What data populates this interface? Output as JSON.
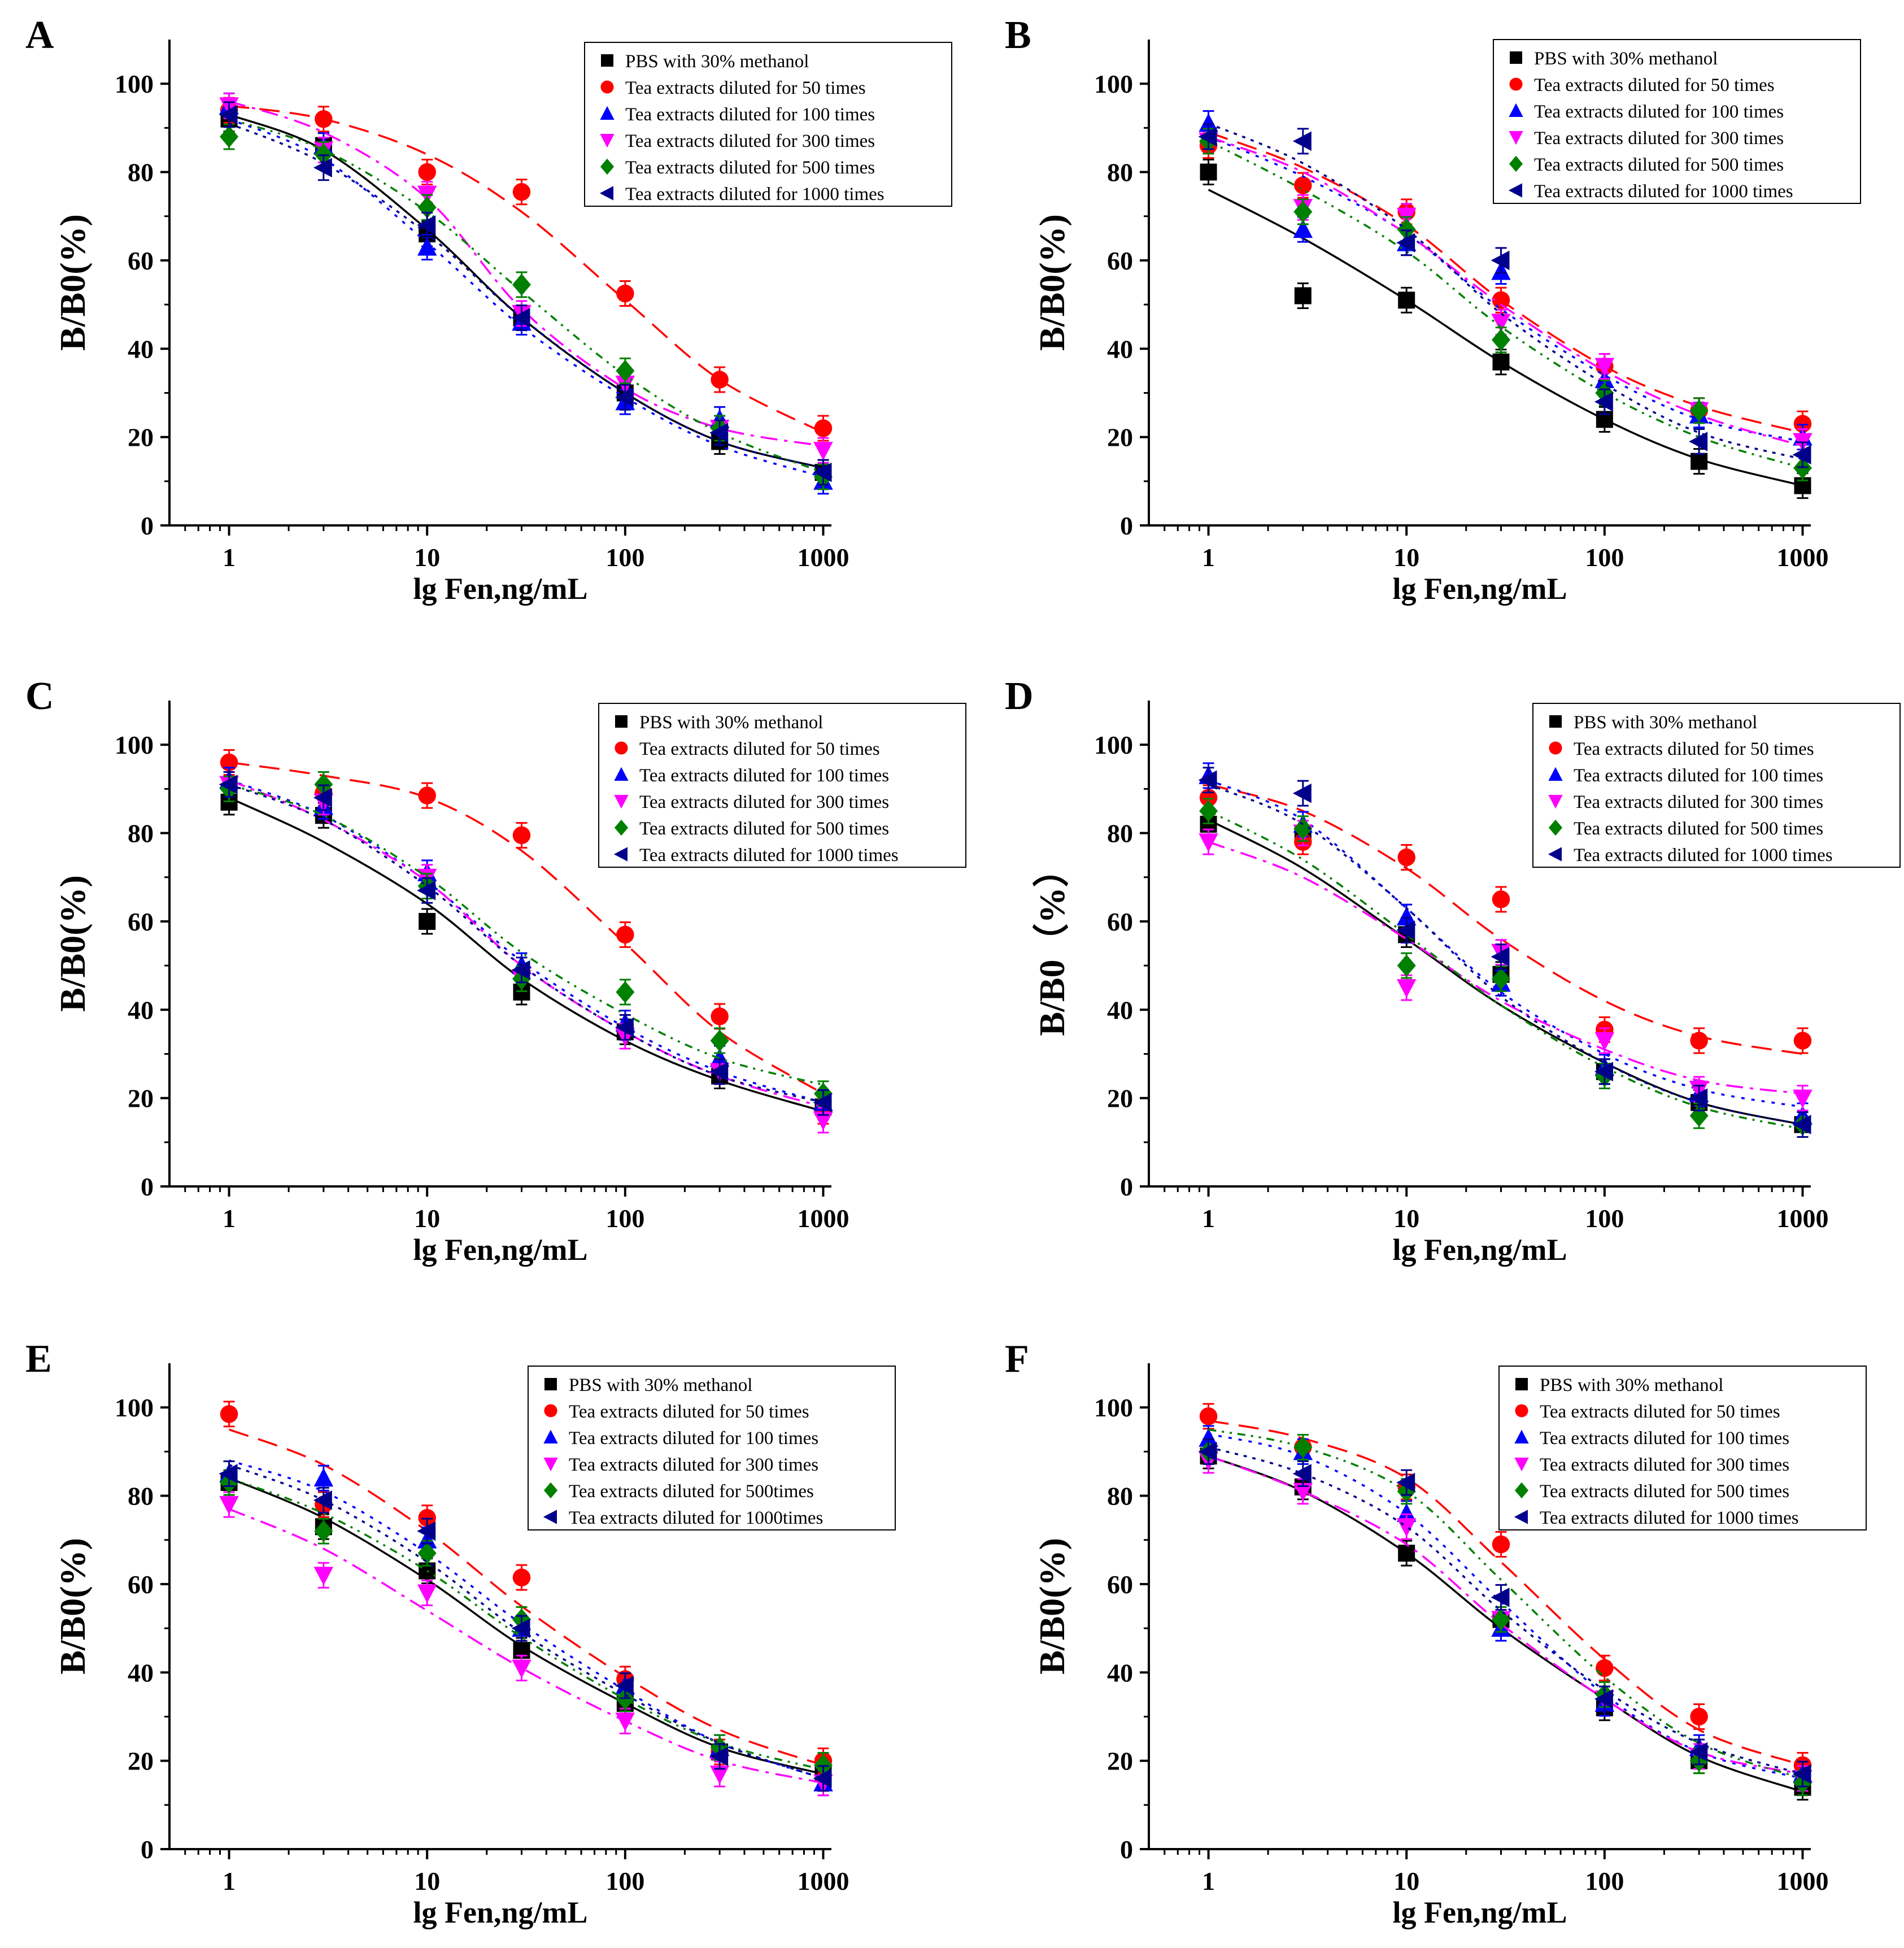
{
  "colors": {
    "s0": "#000000",
    "s1": "#ff0000",
    "s2": "#0000ff",
    "s3": "#ff00ff",
    "s4": "#008000",
    "s5": "#00008b"
  },
  "chart_data": [
    {
      "panel": "A",
      "type": "scatter",
      "xscale": "log",
      "xlim": [
        0.5,
        1100
      ],
      "ylim": [
        0,
        110
      ],
      "xticks": [
        "1",
        "10",
        "100",
        "1000"
      ],
      "yticks": [
        "0",
        "20",
        "40",
        "60",
        "80",
        "100"
      ],
      "xlabel": "lg Fen,ng/mL",
      "ylabel": "B/B0(%)",
      "x": [
        1,
        3,
        10,
        30,
        100,
        300,
        1000
      ],
      "series": [
        {
          "name": "PBS with 30% methanol",
          "marker": "square",
          "values": [
            92,
            86,
            66,
            47,
            30,
            19,
            12
          ],
          "fit": [
            93,
            85,
            67,
            47,
            30,
            19,
            13
          ]
        },
        {
          "name": "Tea extracts diluted for 50 times",
          "marker": "circle",
          "values": [
            94,
            92,
            80,
            75.5,
            52.5,
            33,
            22
          ],
          "fit": [
            95,
            92,
            84,
            71,
            51,
            33,
            21
          ]
        },
        {
          "name": "Tea extracts diluted for 100 times",
          "marker": "triangle-up",
          "values": [
            95,
            86,
            63,
            46,
            28,
            24,
            10
          ],
          "fit": [
            92,
            83,
            64,
            45,
            29,
            18,
            11
          ]
        },
        {
          "name": "Tea extracts diluted for 300 times",
          "marker": "triangle-down",
          "values": [
            95,
            85,
            75,
            48,
            32,
            22,
            17
          ],
          "fit": [
            96,
            89,
            74,
            49,
            31,
            22,
            18
          ]
        },
        {
          "name": "Tea extracts diluted for 500 times",
          "marker": "diamond",
          "values": [
            88,
            84,
            72,
            54.5,
            35,
            22,
            11
          ],
          "fit": [
            92,
            85,
            71,
            53,
            34,
            21,
            12
          ]
        },
        {
          "name": "Tea extracts diluted for 1000 times",
          "marker": "triangle-left",
          "values": [
            93,
            81,
            68,
            47,
            29,
            21,
            12
          ],
          "fit": [
            91,
            82,
            66,
            47,
            30,
            19,
            13
          ]
        }
      ]
    },
    {
      "panel": "B",
      "type": "scatter",
      "xscale": "log",
      "xlim": [
        0.5,
        1100
      ],
      "ylim": [
        0,
        110
      ],
      "xticks": [
        "1",
        "10",
        "100",
        "1000"
      ],
      "yticks": [
        "0",
        "20",
        "40",
        "60",
        "80",
        "100"
      ],
      "xlabel": "lg Fen,ng/mL",
      "ylabel": "B/B0(%)",
      "x": [
        1,
        3,
        10,
        30,
        100,
        300,
        1000
      ],
      "series": [
        {
          "name": "PBS with 30% methanol",
          "marker": "square",
          "values": [
            80,
            52,
            51,
            37,
            24,
            14.5,
            9
          ],
          "fit": [
            76,
            65,
            51,
            37,
            24,
            15,
            9
          ]
        },
        {
          "name": "Tea extracts diluted for 50 times",
          "marker": "circle",
          "values": [
            86,
            77,
            71,
            51,
            36,
            26,
            23
          ],
          "fit": [
            89,
            81,
            68,
            51,
            36,
            27,
            21
          ]
        },
        {
          "name": "Tea extracts diluted for 100 times",
          "marker": "triangle-up",
          "values": [
            91,
            67,
            64,
            57.5,
            33,
            25,
            20
          ],
          "fit": [
            88,
            79,
            66,
            49,
            34,
            24,
            19
          ]
        },
        {
          "name": "Tea extracts diluted for 300 times",
          "marker": "triangle-down",
          "values": [
            87,
            72,
            70,
            46,
            36,
            26,
            19
          ],
          "fit": [
            88,
            80,
            66,
            50,
            35,
            25,
            18
          ]
        },
        {
          "name": "Tea extracts diluted for 500 times",
          "marker": "diamond",
          "values": [
            87,
            71,
            67,
            42,
            30,
            26,
            13
          ],
          "fit": [
            87,
            76,
            62,
            45,
            30,
            20,
            13
          ]
        },
        {
          "name": "Tea extracts diluted for 1000 times",
          "marker": "triangle-left",
          "values": [
            88,
            87,
            64,
            60,
            28,
            19,
            16
          ],
          "fit": [
            91,
            82,
            67,
            48,
            32,
            21,
            15
          ]
        }
      ]
    },
    {
      "panel": "C",
      "type": "scatter",
      "xscale": "log",
      "xlim": [
        0.5,
        1100
      ],
      "ylim": [
        0,
        110
      ],
      "xticks": [
        "1",
        "10",
        "100",
        "1000"
      ],
      "yticks": [
        "0",
        "20",
        "40",
        "60",
        "80",
        "100"
      ],
      "xlabel": "lg Fen,ng/mL",
      "ylabel": "B/B0(%)",
      "x": [
        1,
        3,
        10,
        30,
        100,
        300,
        1000
      ],
      "series": [
        {
          "name": "PBS with 30% methanol",
          "marker": "square",
          "values": [
            87,
            84,
            60,
            44,
            35,
            25,
            18
          ],
          "fit": [
            88,
            78,
            64,
            47,
            33,
            24,
            17
          ]
        },
        {
          "name": "Tea extracts diluted for 50 times",
          "marker": "circle",
          "values": [
            96,
            89,
            88.5,
            79.5,
            57,
            38.5,
            17
          ],
          "fit": [
            96,
            93,
            88,
            76,
            55,
            35,
            21
          ]
        },
        {
          "name": "Tea extracts diluted for 100 times",
          "marker": "triangle-up",
          "values": [
            92,
            86,
            71,
            50,
            37,
            29,
            19
          ],
          "fit": [
            92,
            84,
            69,
            51,
            36,
            26,
            19
          ]
        },
        {
          "name": "Tea extracts diluted for 300 times",
          "marker": "triangle-down",
          "values": [
            91,
            87,
            70,
            47,
            34,
            26,
            15
          ],
          "fit": [
            92,
            83,
            69,
            50,
            35,
            25,
            18
          ]
        },
        {
          "name": "Tea extracts diluted for 500 times",
          "marker": "diamond",
          "values": [
            90,
            91,
            68,
            47,
            44,
            33,
            21
          ],
          "fit": [
            91,
            84,
            70,
            53,
            39,
            29,
            23
          ]
        },
        {
          "name": "Tea extracts diluted for 1000 times",
          "marker": "triangle-left",
          "values": [
            91,
            88,
            67,
            49,
            36,
            26,
            19
          ],
          "fit": [
            91,
            83,
            68,
            50,
            35,
            25,
            19
          ]
        }
      ]
    },
    {
      "panel": "D",
      "type": "scatter",
      "xscale": "log",
      "xlim": [
        0.5,
        1100
      ],
      "ylim": [
        0,
        110
      ],
      "xticks": [
        "1",
        "10",
        "100",
        "1000"
      ],
      "yticks": [
        "0",
        "20",
        "40",
        "60",
        "80",
        "100"
      ],
      "xlabel": "lg Fen,ng/mL",
      "ylabel": "B/B0（%）",
      "x": [
        1,
        3,
        10,
        30,
        100,
        300,
        1000
      ],
      "series": [
        {
          "name": "PBS with 30% methanol",
          "marker": "square",
          "values": [
            82,
            80,
            57,
            48,
            26,
            19,
            14
          ],
          "fit": [
            83,
            72,
            56,
            41,
            28,
            19,
            14
          ]
        },
        {
          "name": "Tea extracts diluted for 50 times",
          "marker": "circle",
          "values": [
            88,
            78,
            74.5,
            65,
            35.5,
            33,
            33
          ],
          "fit": [
            91,
            85,
            72,
            56,
            42,
            34,
            30
          ]
        },
        {
          "name": "Tea extracts diluted for 100 times",
          "marker": "triangle-up",
          "values": [
            93,
            82,
            61,
            46,
            27,
            21,
            16
          ],
          "fit": [
            92,
            83,
            63,
            44,
            30,
            22,
            18
          ]
        },
        {
          "name": "Tea extracts diluted for 300 times",
          "marker": "triangle-down",
          "values": [
            78,
            80,
            45,
            53,
            33,
            22,
            20
          ],
          "fit": [
            78,
            70,
            56,
            42,
            31,
            24,
            21
          ]
        },
        {
          "name": "Tea extracts diluted for 500 times",
          "marker": "diamond",
          "values": [
            85,
            81,
            50,
            47,
            25,
            16,
            14
          ],
          "fit": [
            85,
            74,
            57,
            41,
            27,
            18,
            13
          ]
        },
        {
          "name": "Tea extracts diluted for 1000 times",
          "marker": "triangle-left",
          "values": [
            92,
            89,
            58,
            52,
            26,
            20,
            14
          ],
          "fit": [
            91,
            82,
            63,
            43,
            28,
            19,
            14
          ]
        }
      ]
    },
    {
      "panel": "E",
      "type": "scatter",
      "xscale": "log",
      "xlim": [
        0.5,
        1100
      ],
      "ylim": [
        0,
        110
      ],
      "xticks": [
        "1",
        "10",
        "100",
        "1000"
      ],
      "yticks": [
        "0",
        "20",
        "40",
        "60",
        "80",
        "100"
      ],
      "xlabel": "lg Fen,ng/mL",
      "ylabel": "B/B0(%)",
      "x": [
        1,
        3,
        10,
        30,
        100,
        300,
        1000
      ],
      "series": [
        {
          "name": "PBS with 30% methanol",
          "marker": "square",
          "values": [
            83,
            73,
            63,
            45,
            33,
            22,
            17
          ],
          "fit": [
            84,
            75,
            61,
            46,
            33,
            23,
            17
          ]
        },
        {
          "name": "Tea extracts diluted for 50 times",
          "marker": "circle",
          "values": [
            98.5,
            78,
            75,
            61.5,
            38.5,
            22,
            20
          ],
          "fit": [
            95,
            87,
            72,
            55,
            39,
            27,
            19
          ]
        },
        {
          "name": "Tea extracts diluted for 100 times",
          "marker": "triangle-up",
          "values": [
            85,
            84,
            70,
            50,
            37,
            23,
            15
          ],
          "fit": [
            88,
            81,
            67,
            51,
            36,
            24,
            16
          ]
        },
        {
          "name": "Tea extracts diluted for 300 times",
          "marker": "triangle-down",
          "values": [
            78,
            62,
            58,
            41,
            29,
            17,
            15
          ],
          "fit": [
            77,
            68,
            54,
            41,
            29,
            20,
            15
          ]
        },
        {
          "name": "Tea extracts diluted for 500times",
          "marker": "diamond",
          "values": [
            83,
            72,
            67,
            52,
            34,
            23,
            19
          ],
          "fit": [
            84,
            76,
            63,
            48,
            34,
            24,
            18
          ]
        },
        {
          "name": "Tea extracts diluted for 1000times",
          "marker": "triangle-left",
          "values": [
            85,
            79,
            72,
            50,
            37,
            21,
            16
          ],
          "fit": [
            87,
            79,
            65,
            49,
            35,
            24,
            16
          ]
        }
      ]
    },
    {
      "panel": "F",
      "type": "scatter",
      "xscale": "log",
      "xlim": [
        0.5,
        1100
      ],
      "ylim": [
        0,
        110
      ],
      "xticks": [
        "1",
        "10",
        "100",
        "1000"
      ],
      "yticks": [
        "0",
        "20",
        "40",
        "60",
        "80",
        "100"
      ],
      "xlabel": "lg Fen,ng/mL",
      "ylabel": "B/B0(%)",
      "x": [
        1,
        3,
        10,
        30,
        100,
        300,
        1000
      ],
      "series": [
        {
          "name": "PBS with 30% methanol",
          "marker": "square",
          "values": [
            89,
            82,
            67,
            52,
            32,
            20,
            14
          ],
          "fit": [
            89,
            81,
            67,
            50,
            34,
            21,
            13
          ]
        },
        {
          "name": "Tea extracts diluted for 50 times",
          "marker": "circle",
          "values": [
            98,
            91,
            82,
            69,
            41,
            30,
            19
          ],
          "fit": [
            97,
            93,
            84,
            65,
            43,
            27,
            19
          ]
        },
        {
          "name": "Tea extracts diluted for 100 times",
          "marker": "triangle-up",
          "values": [
            93,
            90,
            76,
            50,
            33,
            23,
            17
          ],
          "fit": [
            94,
            89,
            76,
            56,
            35,
            22,
            16
          ]
        },
        {
          "name": "Tea extracts diluted for 300 times",
          "marker": "triangle-down",
          "values": [
            88,
            81,
            73,
            52,
            34,
            21,
            16
          ],
          "fit": [
            89,
            81,
            69,
            51,
            34,
            22,
            17
          ]
        },
        {
          "name": "Tea extracts diluted for 500 times",
          "marker": "diamond",
          "values": [
            90,
            91,
            81,
            52,
            35,
            20,
            15
          ],
          "fit": [
            95,
            91,
            81,
            61,
            39,
            24,
            16
          ]
        },
        {
          "name": "Tea extracts diluted for 1000 times",
          "marker": "triangle-left",
          "values": [
            90,
            85,
            83,
            57,
            34,
            22,
            17
          ],
          "fit": [
            91,
            85,
            73,
            54,
            36,
            24,
            17
          ]
        }
      ]
    }
  ]
}
